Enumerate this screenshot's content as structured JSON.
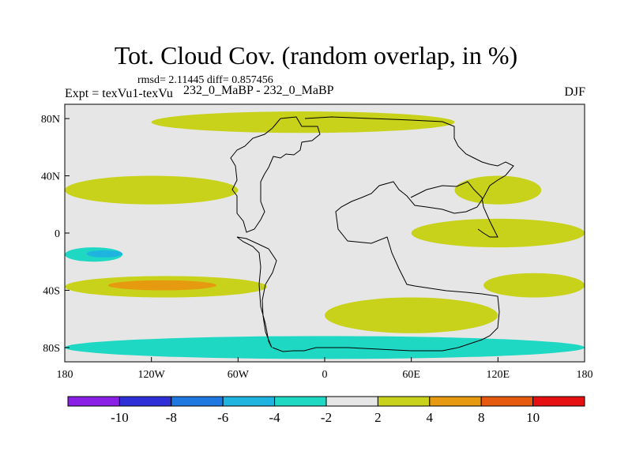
{
  "title": "Tot. Cloud Cov. (random overlap, in %)",
  "stats": "rmsd= 2.11445  diff= 0.857456",
  "experiment": "Expt = texVu1-texVu",
  "subtitle": "232_0_MaBP - 232_0_MaBP",
  "season": "DJF",
  "chart_data": {
    "type": "heatmap",
    "title": "Tot. Cloud Cov. (random overlap, in %)",
    "projection": "cylindrical equidistant",
    "xlim": [
      -180,
      180
    ],
    "ylim": [
      -90,
      90
    ],
    "x_ticks": [
      {
        "value": -180,
        "label": "180"
      },
      {
        "value": -120,
        "label": "120W"
      },
      {
        "value": -60,
        "label": "60W"
      },
      {
        "value": 0,
        "label": "0"
      },
      {
        "value": 60,
        "label": "60E"
      },
      {
        "value": 120,
        "label": "120E"
      },
      {
        "value": 180,
        "label": "180"
      }
    ],
    "y_ticks": [
      {
        "value": 80,
        "label": "80N"
      },
      {
        "value": 40,
        "label": "40N"
      },
      {
        "value": 0,
        "label": "0"
      },
      {
        "value": -40,
        "label": "40S"
      },
      {
        "value": -80,
        "label": "80S"
      }
    ],
    "colorbar": {
      "levels": [
        -10,
        -8,
        -6,
        -4,
        -2,
        2,
        4,
        8,
        10
      ],
      "labels": [
        "-10",
        "-8",
        "-6",
        "-4",
        "-2",
        "2",
        "4",
        "8",
        "10"
      ],
      "colors": [
        "#8a1fe6",
        "#2f2fd8",
        "#1f78e0",
        "#1fb4e0",
        "#1fd8c4",
        "#e6e6e6",
        "#c8d21a",
        "#e69a10",
        "#e65a10",
        "#e61010"
      ]
    },
    "fields": [
      {
        "lon": [
          -180,
          -140
        ],
        "lat": [
          -20,
          -10
        ],
        "bin": "-4..-2"
      },
      {
        "lon": [
          -165,
          -140
        ],
        "lat": [
          -17,
          -12
        ],
        "bin": "-6..-4"
      },
      {
        "lon": [
          -180,
          -40
        ],
        "lat": [
          -45,
          -30
        ],
        "bin": "2..4"
      },
      {
        "lon": [
          -150,
          -75
        ],
        "lat": [
          -40,
          -33
        ],
        "bin": "4..8"
      },
      {
        "lon": [
          -180,
          180
        ],
        "lat": [
          -88,
          -72
        ],
        "bin": "-4..-2"
      },
      {
        "lon": [
          0,
          120
        ],
        "lat": [
          -70,
          -45
        ],
        "bin": "2..4"
      },
      {
        "lon": [
          110,
          180
        ],
        "lat": [
          -45,
          -28
        ],
        "bin": "2..4"
      },
      {
        "lon": [
          60,
          180
        ],
        "lat": [
          -10,
          10
        ],
        "bin": "2..4"
      },
      {
        "lon": [
          -180,
          -60
        ],
        "lat": [
          20,
          40
        ],
        "bin": "2..4"
      },
      {
        "lon": [
          90,
          150
        ],
        "lat": [
          20,
          40
        ],
        "bin": "2..4"
      },
      {
        "lon": [
          -120,
          90
        ],
        "lat": [
          70,
          85
        ],
        "bin": "2..4"
      }
    ]
  }
}
